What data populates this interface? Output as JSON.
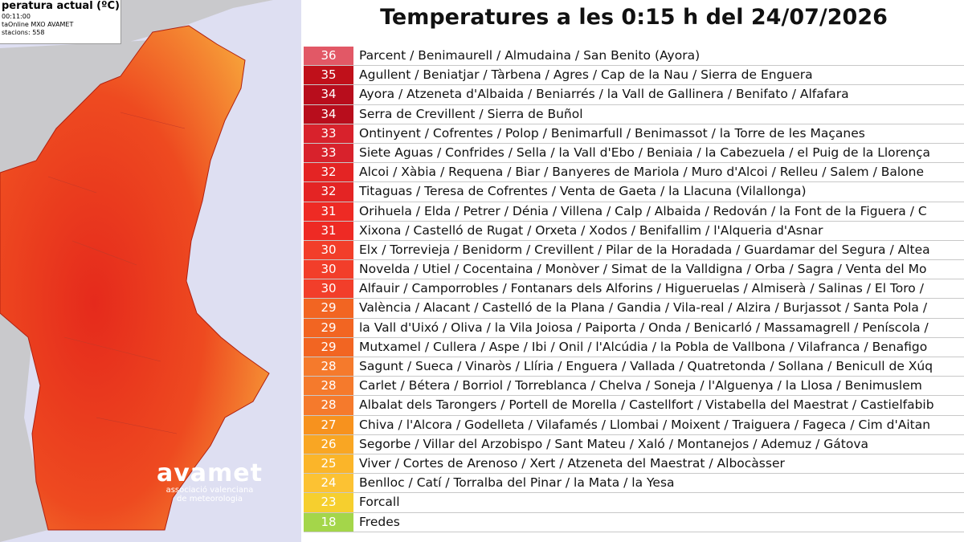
{
  "map": {
    "legend": [
      "peratura actual (ºC)",
      "00:11:00",
      "taOnline MXO AVAMET",
      "stacions: 558"
    ],
    "logo": {
      "name": "avamet",
      "subtitle": [
        "associació valenciana",
        "de meteorologia"
      ]
    }
  },
  "title": "Temperatures a les 0:15 h del 24/07/2026",
  "table": {
    "rows": [
      {
        "temperature": 36,
        "places": "Parcent / Benimaurell / Almudaina / San Benito (Ayora)",
        "color": "#e25866"
      },
      {
        "temperature": 35,
        "places": "Agullent / Beniatjar / Tàrbena / Agres / Cap de la Nau / Sierra de Enguera",
        "color": "#c0101a"
      },
      {
        "temperature": 34,
        "places": "Ayora / Atzeneta d'Albaida / Beniarrés / la Vall de Gallinera / Benifato / Alfafara",
        "color": "#b80d1c"
      },
      {
        "temperature": 34,
        "places": "Serra de Crevillent / Sierra de Buñol",
        "color": "#b80d1c"
      },
      {
        "temperature": 33,
        "places": "Ontinyent / Cofrentes / Polop / Benimarfull / Benimassot / la Torre de les Maçanes",
        "color": "#d8222c"
      },
      {
        "temperature": 33,
        "places": "Siete Aguas / Confrides / Sella / la Vall d'Ebo / Beniaia / la Cabezuela / el Puig de la Llorença",
        "color": "#d8222c"
      },
      {
        "temperature": 32,
        "places": "Alcoi / Xàbia / Requena / Biar / Banyeres de Mariola / Muro d'Alcoi / Relleu / Salem / Balone",
        "color": "#e42424"
      },
      {
        "temperature": 32,
        "places": "Titaguas / Teresa de Cofrentes / Venta de Gaeta / la Llacuna (Vilallonga)",
        "color": "#e42424"
      },
      {
        "temperature": 31,
        "places": "Orihuela / Elda / Petrer / Dénia / Villena / Calp / Albaida / Redován / la Font de la Figuera / C",
        "color": "#ee2a24"
      },
      {
        "temperature": 31,
        "places": "Xixona / Castelló de Rugat / Orxeta / Xodos / Benifallim / l'Alqueria d'Asnar",
        "color": "#ee2a24"
      },
      {
        "temperature": 30,
        "places": "Elx / Torrevieja / Benidorm / Crevillent / Pilar de la Horadada / Guardamar del Segura / Altea",
        "color": "#f23e2a"
      },
      {
        "temperature": 30,
        "places": "Novelda / Utiel / Cocentaina / Monòver / Simat de la Valldigna / Orba / Sagra / Venta del Mo",
        "color": "#f23e2a"
      },
      {
        "temperature": 30,
        "places": "Alfauir / Camporrobles / Fontanars dels Alforins / Higueruelas / Almiserà / Salinas / El Toro /",
        "color": "#f23e2a"
      },
      {
        "temperature": 29,
        "places": "València / Alacant / Castelló de la Plana / Gandia / Vila-real / Alzira / Burjassot / Santa Pola /",
        "color": "#f26522"
      },
      {
        "temperature": 29,
        "places": "la Vall d'Uixó / Oliva / la Vila Joiosa / Paiporta / Onda / Benicarló / Massamagrell / Peníscola /",
        "color": "#f26522"
      },
      {
        "temperature": 29,
        "places": "Mutxamel / Cullera / Aspe / Ibi / Onil / l'Alcúdia / la Pobla de Vallbona / Vilafranca / Benafigo",
        "color": "#f26522"
      },
      {
        "temperature": 28,
        "places": "Sagunt / Sueca / Vinaròs / Llíria / Enguera / Vallada / Quatretonda / Sollana / Benicull de Xúq",
        "color": "#f57a2c"
      },
      {
        "temperature": 28,
        "places": "Carlet / Bétera / Borriol / Torreblanca / Chelva / Soneja / l'Alguenya / la Llosa / Benimuslem",
        "color": "#f57a2c"
      },
      {
        "temperature": 28,
        "places": "Albalat dels Tarongers / Portell de Morella / Castellfort / Vistabella del Maestrat / Castielfabib",
        "color": "#f57a2c"
      },
      {
        "temperature": 27,
        "places": "Chiva / l'Alcora / Godelleta / Vilafamés / Llombai / Moixent / Traiguera / Fageca / Cim d'Aitan",
        "color": "#f7921e"
      },
      {
        "temperature": 26,
        "places": "Segorbe / Villar del Arzobispo / Sant Mateu / Xaló / Montanejos / Ademuz / Gátova",
        "color": "#f9a623"
      },
      {
        "temperature": 25,
        "places": "Viver / Cortes de Arenoso / Xert / Atzeneta del Maestrat / Albocàsser",
        "color": "#fbb529"
      },
      {
        "temperature": 24,
        "places": "Benlloc / Catí / Torralba del Pinar / la Mata / la Yesa",
        "color": "#fcc233"
      },
      {
        "temperature": 23,
        "places": "Forcall",
        "color": "#f6cf2e"
      },
      {
        "temperature": 18,
        "places": "Fredes",
        "color": "#a4d64a"
      }
    ]
  }
}
